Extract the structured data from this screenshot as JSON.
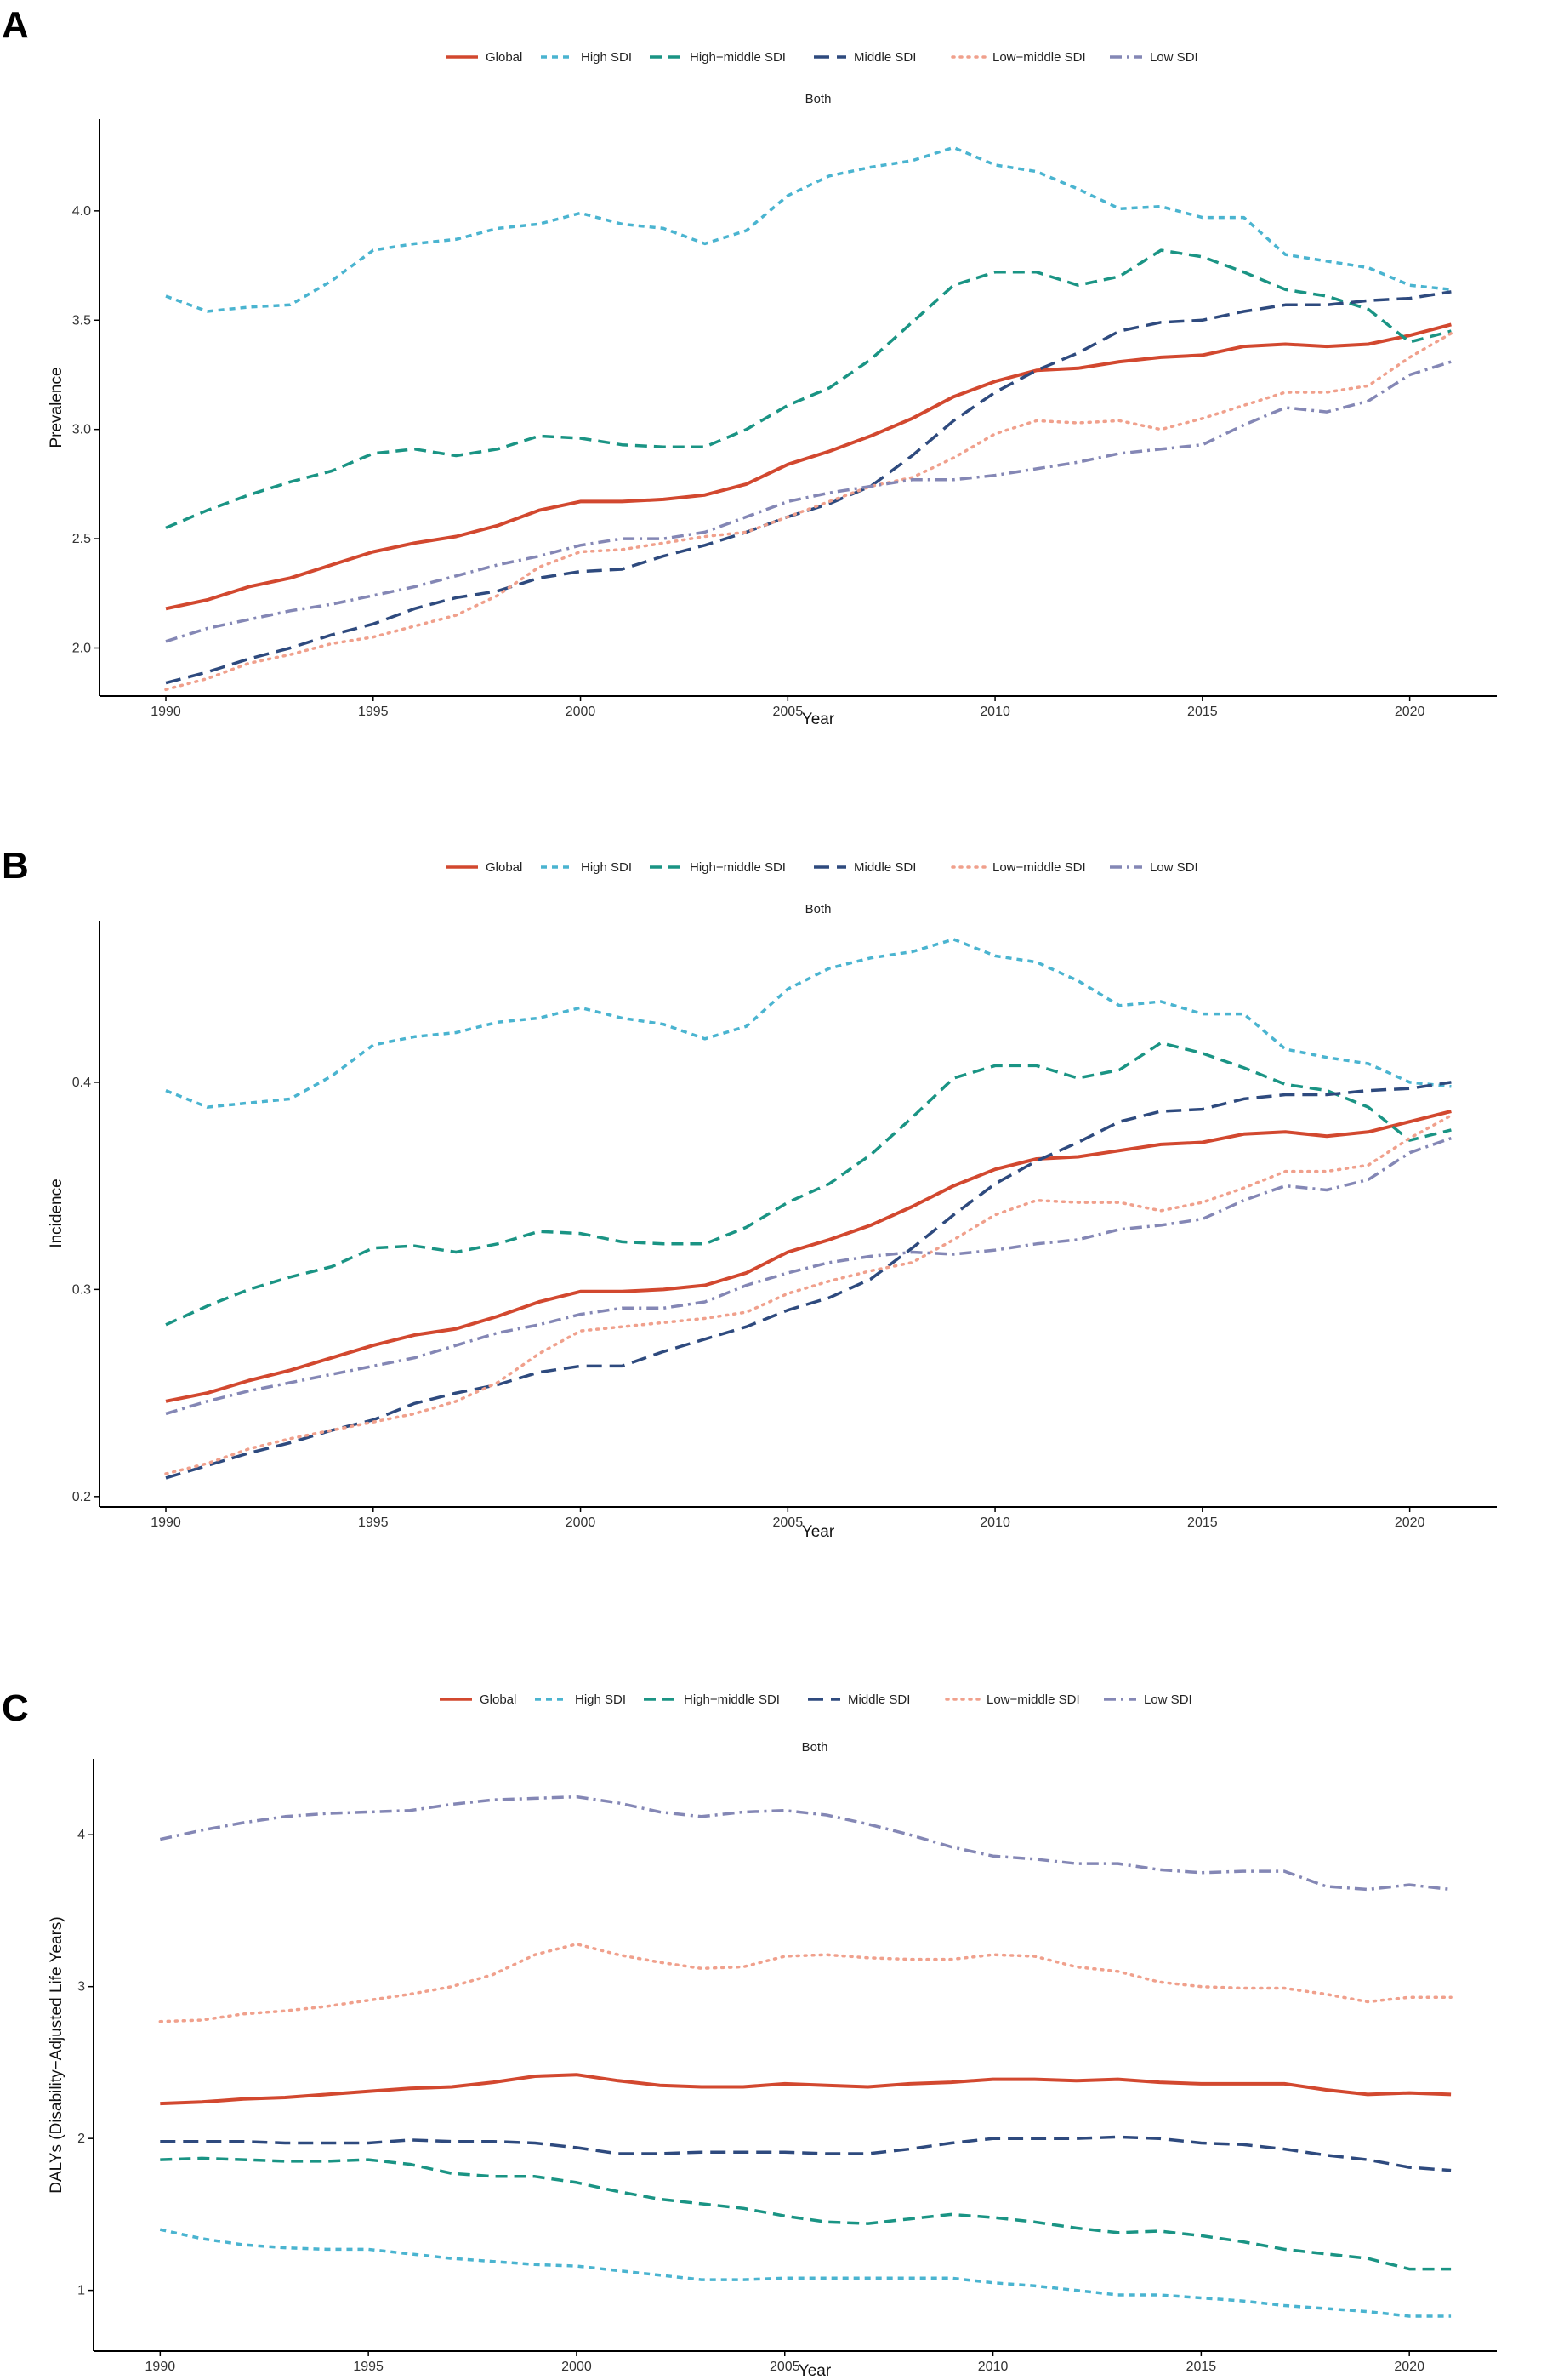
{
  "figure": {
    "series_styles": [
      {
        "name": "Global",
        "color": "#D2482F",
        "dash": "solid"
      },
      {
        "name": "High SDI",
        "color": "#4AB4D0",
        "dash": "dashed-short"
      },
      {
        "name": "High−middle SDI",
        "color": "#1A9484",
        "dash": "dashed"
      },
      {
        "name": "Middle SDI",
        "color": "#2E4A7E",
        "dash": "dashed-long"
      },
      {
        "name": "Low−middle SDI",
        "color": "#F0A08C",
        "dash": "dotted"
      },
      {
        "name": "Low SDI",
        "color": "#8487B5",
        "dash": "dashdot"
      }
    ]
  },
  "chart_data": [
    {
      "panel": "A",
      "type": "line",
      "subtitle": "Both",
      "xlabel": "Year",
      "ylabel": "Prevalence",
      "xlim": [
        1988.4,
        2022.1
      ],
      "ylim": [
        1.78,
        4.42
      ],
      "xticks": [
        1990,
        1995,
        2000,
        2005,
        2010,
        2015,
        2020
      ],
      "yticks": [
        "2.0",
        "2.5",
        "3.0",
        "3.5",
        "4.0"
      ],
      "x": [
        1990,
        1991,
        1992,
        1993,
        1994,
        1995,
        1996,
        1997,
        1998,
        1999,
        2000,
        2001,
        2002,
        2003,
        2004,
        2005,
        2006,
        2007,
        2008,
        2009,
        2010,
        2011,
        2012,
        2013,
        2014,
        2015,
        2016,
        2017,
        2018,
        2019,
        2020,
        2021
      ],
      "series": [
        {
          "name": "Global",
          "values": [
            2.18,
            2.22,
            2.28,
            2.32,
            2.38,
            2.44,
            2.48,
            2.51,
            2.56,
            2.63,
            2.67,
            2.67,
            2.68,
            2.7,
            2.75,
            2.84,
            2.9,
            2.97,
            3.05,
            3.15,
            3.22,
            3.27,
            3.28,
            3.31,
            3.33,
            3.34,
            3.38,
            3.39,
            3.38,
            3.39,
            3.43,
            3.48
          ]
        },
        {
          "name": "High SDI",
          "values": [
            3.61,
            3.54,
            3.56,
            3.57,
            3.68,
            3.82,
            3.85,
            3.87,
            3.92,
            3.94,
            3.99,
            3.94,
            3.92,
            3.85,
            3.91,
            4.07,
            4.16,
            4.2,
            4.23,
            4.29,
            4.21,
            4.18,
            4.1,
            4.01,
            4.02,
            3.97,
            3.97,
            3.8,
            3.77,
            3.74,
            3.66,
            3.64
          ]
        },
        {
          "name": "High−middle SDI",
          "values": [
            2.55,
            2.63,
            2.7,
            2.76,
            2.81,
            2.89,
            2.91,
            2.88,
            2.91,
            2.97,
            2.96,
            2.93,
            2.92,
            2.92,
            3.0,
            3.11,
            3.19,
            3.32,
            3.49,
            3.66,
            3.72,
            3.72,
            3.66,
            3.7,
            3.82,
            3.79,
            3.72,
            3.64,
            3.61,
            3.55,
            3.4,
            3.45
          ]
        },
        {
          "name": "Middle SDI",
          "values": [
            1.84,
            1.89,
            1.95,
            2.0,
            2.06,
            2.11,
            2.18,
            2.23,
            2.26,
            2.32,
            2.35,
            2.36,
            2.42,
            2.47,
            2.53,
            2.6,
            2.66,
            2.74,
            2.88,
            3.04,
            3.17,
            3.27,
            3.35,
            3.45,
            3.49,
            3.5,
            3.54,
            3.57,
            3.57,
            3.59,
            3.6,
            3.63
          ]
        },
        {
          "name": "Low−middle SDI",
          "values": [
            1.81,
            1.86,
            1.93,
            1.97,
            2.02,
            2.05,
            2.1,
            2.15,
            2.24,
            2.37,
            2.44,
            2.45,
            2.48,
            2.51,
            2.53,
            2.6,
            2.67,
            2.74,
            2.78,
            2.87,
            2.98,
            3.04,
            3.03,
            3.04,
            3.0,
            3.05,
            3.11,
            3.17,
            3.17,
            3.2,
            3.33,
            3.44
          ]
        },
        {
          "name": "Low SDI",
          "values": [
            2.03,
            2.09,
            2.13,
            2.17,
            2.2,
            2.24,
            2.28,
            2.33,
            2.38,
            2.42,
            2.47,
            2.5,
            2.5,
            2.53,
            2.6,
            2.67,
            2.71,
            2.74,
            2.77,
            2.77,
            2.79,
            2.82,
            2.85,
            2.89,
            2.91,
            2.93,
            3.02,
            3.1,
            3.08,
            3.13,
            3.25,
            3.31
          ]
        }
      ]
    },
    {
      "panel": "B",
      "type": "line",
      "subtitle": "Both",
      "xlabel": "Year",
      "ylabel": "Incidence",
      "xlim": [
        1988.4,
        2022.1
      ],
      "ylim": [
        0.195,
        0.478
      ],
      "xticks": [
        1990,
        1995,
        2000,
        2005,
        2010,
        2015,
        2020
      ],
      "yticks": [
        "0.2",
        "0.3",
        "0.4"
      ],
      "x": [
        1990,
        1991,
        1992,
        1993,
        1994,
        1995,
        1996,
        1997,
        1998,
        1999,
        2000,
        2001,
        2002,
        2003,
        2004,
        2005,
        2006,
        2007,
        2008,
        2009,
        2010,
        2011,
        2012,
        2013,
        2014,
        2015,
        2016,
        2017,
        2018,
        2019,
        2020,
        2021
      ],
      "series": [
        {
          "name": "Global",
          "values": [
            0.246,
            0.25,
            0.256,
            0.261,
            0.267,
            0.273,
            0.278,
            0.281,
            0.287,
            0.294,
            0.299,
            0.299,
            0.3,
            0.302,
            0.308,
            0.318,
            0.324,
            0.331,
            0.34,
            0.35,
            0.358,
            0.363,
            0.364,
            0.367,
            0.37,
            0.371,
            0.375,
            0.376,
            0.374,
            0.376,
            0.381,
            0.386
          ]
        },
        {
          "name": "High SDI",
          "values": [
            0.396,
            0.388,
            0.39,
            0.392,
            0.403,
            0.418,
            0.422,
            0.424,
            0.429,
            0.431,
            0.436,
            0.431,
            0.428,
            0.421,
            0.427,
            0.445,
            0.455,
            0.46,
            0.463,
            0.469,
            0.461,
            0.458,
            0.449,
            0.437,
            0.439,
            0.433,
            0.433,
            0.416,
            0.412,
            0.409,
            0.4,
            0.398
          ]
        },
        {
          "name": "High−middle SDI",
          "values": [
            0.283,
            0.292,
            0.3,
            0.306,
            0.311,
            0.32,
            0.321,
            0.318,
            0.322,
            0.328,
            0.327,
            0.323,
            0.322,
            0.322,
            0.33,
            0.342,
            0.351,
            0.365,
            0.383,
            0.402,
            0.408,
            0.408,
            0.402,
            0.406,
            0.419,
            0.414,
            0.407,
            0.399,
            0.396,
            0.388,
            0.372,
            0.377
          ]
        },
        {
          "name": "Middle SDI",
          "values": [
            0.209,
            0.215,
            0.221,
            0.226,
            0.232,
            0.237,
            0.245,
            0.25,
            0.254,
            0.26,
            0.263,
            0.263,
            0.27,
            0.276,
            0.282,
            0.29,
            0.296,
            0.305,
            0.32,
            0.336,
            0.351,
            0.362,
            0.371,
            0.381,
            0.386,
            0.387,
            0.392,
            0.394,
            0.394,
            0.396,
            0.397,
            0.4
          ]
        },
        {
          "name": "Low−middle SDI",
          "values": [
            0.211,
            0.216,
            0.223,
            0.228,
            0.232,
            0.236,
            0.24,
            0.246,
            0.255,
            0.269,
            0.28,
            0.282,
            0.284,
            0.286,
            0.289,
            0.298,
            0.304,
            0.309,
            0.313,
            0.324,
            0.336,
            0.343,
            0.342,
            0.342,
            0.338,
            0.342,
            0.349,
            0.357,
            0.357,
            0.36,
            0.373,
            0.384
          ]
        },
        {
          "name": "Low SDI",
          "values": [
            0.24,
            0.246,
            0.251,
            0.255,
            0.259,
            0.263,
            0.267,
            0.273,
            0.279,
            0.283,
            0.288,
            0.291,
            0.291,
            0.294,
            0.302,
            0.308,
            0.313,
            0.316,
            0.318,
            0.317,
            0.319,
            0.322,
            0.324,
            0.329,
            0.331,
            0.334,
            0.343,
            0.35,
            0.348,
            0.353,
            0.366,
            0.373
          ]
        }
      ]
    },
    {
      "panel": "C",
      "type": "line",
      "subtitle": "Both",
      "xlabel": "Year",
      "ylabel": "DALYs (Disability−Adjusted Life Years)",
      "xlim": [
        1988.4,
        2022.1
      ],
      "ylim": [
        0.6,
        4.5
      ],
      "xticks": [
        1990,
        1995,
        2000,
        2005,
        2010,
        2015,
        2020
      ],
      "yticks": [
        "1",
        "2",
        "3",
        "4"
      ],
      "x": [
        1990,
        1991,
        1992,
        1993,
        1994,
        1995,
        1996,
        1997,
        1998,
        1999,
        2000,
        2001,
        2002,
        2003,
        2004,
        2005,
        2006,
        2007,
        2008,
        2009,
        2010,
        2011,
        2012,
        2013,
        2014,
        2015,
        2016,
        2017,
        2018,
        2019,
        2020,
        2021
      ],
      "series": [
        {
          "name": "Global",
          "values": [
            2.23,
            2.24,
            2.26,
            2.27,
            2.29,
            2.31,
            2.33,
            2.34,
            2.37,
            2.41,
            2.42,
            2.38,
            2.35,
            2.34,
            2.34,
            2.36,
            2.35,
            2.34,
            2.36,
            2.37,
            2.39,
            2.39,
            2.38,
            2.39,
            2.37,
            2.36,
            2.36,
            2.36,
            2.32,
            2.29,
            2.3,
            2.29
          ]
        },
        {
          "name": "High SDI",
          "values": [
            1.4,
            1.34,
            1.3,
            1.28,
            1.27,
            1.27,
            1.24,
            1.21,
            1.19,
            1.17,
            1.16,
            1.13,
            1.1,
            1.07,
            1.07,
            1.08,
            1.08,
            1.08,
            1.08,
            1.08,
            1.05,
            1.03,
            1.0,
            0.97,
            0.97,
            0.95,
            0.93,
            0.9,
            0.88,
            0.86,
            0.83,
            0.83
          ]
        },
        {
          "name": "High−middle SDI",
          "values": [
            1.86,
            1.87,
            1.86,
            1.85,
            1.85,
            1.86,
            1.83,
            1.77,
            1.75,
            1.75,
            1.71,
            1.65,
            1.6,
            1.57,
            1.54,
            1.49,
            1.45,
            1.44,
            1.47,
            1.5,
            1.48,
            1.45,
            1.41,
            1.38,
            1.39,
            1.36,
            1.32,
            1.27,
            1.24,
            1.21,
            1.14,
            1.14
          ]
        },
        {
          "name": "Middle SDI",
          "values": [
            1.98,
            1.98,
            1.98,
            1.97,
            1.97,
            1.97,
            1.99,
            1.98,
            1.98,
            1.97,
            1.94,
            1.9,
            1.9,
            1.91,
            1.91,
            1.91,
            1.9,
            1.9,
            1.93,
            1.97,
            2.0,
            2.0,
            2.0,
            2.01,
            2.0,
            1.97,
            1.96,
            1.93,
            1.89,
            1.86,
            1.81,
            1.79
          ]
        },
        {
          "name": "Low−middle SDI",
          "values": [
            2.77,
            2.78,
            2.82,
            2.84,
            2.87,
            2.91,
            2.95,
            3.0,
            3.08,
            3.21,
            3.28,
            3.21,
            3.16,
            3.12,
            3.13,
            3.2,
            3.21,
            3.19,
            3.18,
            3.18,
            3.21,
            3.2,
            3.13,
            3.1,
            3.03,
            3.0,
            2.99,
            2.99,
            2.95,
            2.9,
            2.93,
            2.93
          ]
        },
        {
          "name": "Low SDI",
          "values": [
            3.97,
            4.03,
            4.08,
            4.12,
            4.14,
            4.15,
            4.16,
            4.2,
            4.23,
            4.24,
            4.25,
            4.21,
            4.15,
            4.12,
            4.15,
            4.16,
            4.13,
            4.07,
            4.0,
            3.92,
            3.86,
            3.84,
            3.81,
            3.81,
            3.77,
            3.75,
            3.76,
            3.76,
            3.66,
            3.64,
            3.67,
            3.64
          ]
        }
      ]
    }
  ]
}
